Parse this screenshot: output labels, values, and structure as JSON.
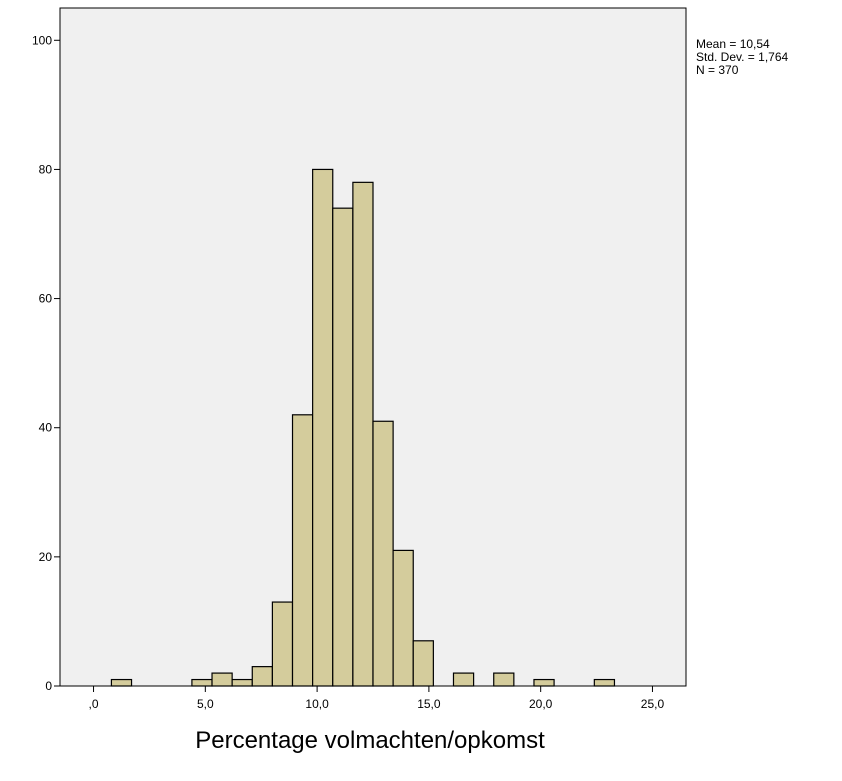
{
  "chart_data": {
    "type": "bar",
    "subtype": "histogram",
    "xlabel": "Percentage volmachten/opkomst",
    "ylabel": "",
    "xlim": [
      -1.5,
      26.5
    ],
    "ylim": [
      0,
      105
    ],
    "x_ticks": [
      0,
      5,
      10,
      15,
      20,
      25
    ],
    "x_tick_labels": [
      ",0",
      "5,0",
      "10,0",
      "15,0",
      "20,0",
      "25,0"
    ],
    "y_ticks": [
      0,
      20,
      40,
      60,
      80,
      100
    ],
    "y_tick_labels": [
      "0",
      "20",
      "40",
      "60",
      "80",
      "100"
    ],
    "bin_width": 0.9,
    "bins": [
      {
        "start": 0.8,
        "count": 1
      },
      {
        "start": 4.4,
        "count": 1
      },
      {
        "start": 5.3,
        "count": 2
      },
      {
        "start": 6.2,
        "count": 1
      },
      {
        "start": 7.1,
        "count": 3
      },
      {
        "start": 8.0,
        "count": 13
      },
      {
        "start": 8.9,
        "count": 42
      },
      {
        "start": 9.8,
        "count": 80
      },
      {
        "start": 10.7,
        "count": 74
      },
      {
        "start": 11.6,
        "count": 78
      },
      {
        "start": 12.5,
        "count": 41
      },
      {
        "start": 13.4,
        "count": 21
      },
      {
        "start": 14.3,
        "count": 7
      },
      {
        "start": 16.1,
        "count": 2
      },
      {
        "start": 17.9,
        "count": 2
      },
      {
        "start": 19.7,
        "count": 1
      },
      {
        "start": 22.4,
        "count": 1
      }
    ],
    "stats": [
      "Mean = 10,54",
      "Std. Dev. = 1,764",
      "N = 370"
    ],
    "grid": false,
    "colors": {
      "bar_fill": "#d4cc9c",
      "bar_stroke": "#000000",
      "plot_background": "#f0f0f0",
      "page_background": "#ffffff"
    }
  }
}
